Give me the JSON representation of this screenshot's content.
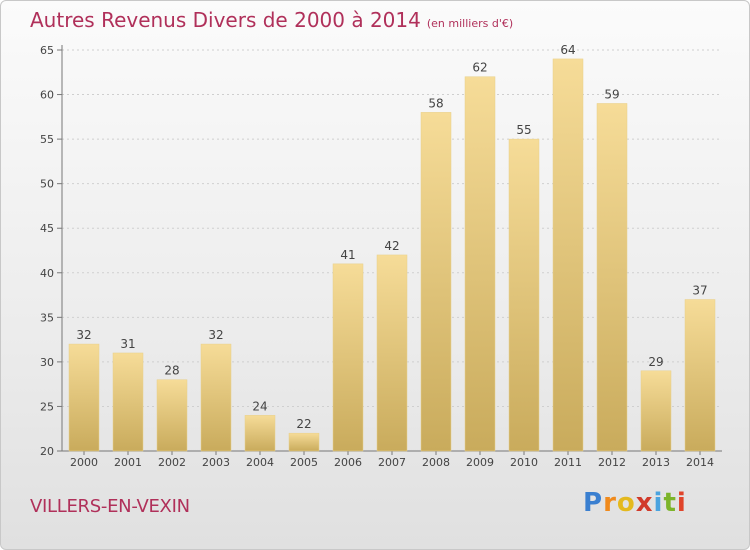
{
  "header": {
    "title": "Autres Revenus Divers de 2000 à 2014",
    "subtitle": "(en milliers d'€)"
  },
  "footer": {
    "town": "VILLERS-EN-VEXIN",
    "logo": [
      "P",
      "r",
      "o",
      "x",
      "i",
      "t",
      "i"
    ]
  },
  "colors": {
    "bar_light": "#f6dc98",
    "bar_dark": "#c9ab5c",
    "title": "#b0305a",
    "grid": "#cccccc"
  },
  "chart_data": {
    "type": "bar",
    "title": "Autres Revenus Divers de 2000 à 2014",
    "subtitle": "(en milliers d'€)",
    "categories": [
      "2000",
      "2001",
      "2002",
      "2003",
      "2004",
      "2005",
      "2006",
      "2007",
      "2008",
      "2009",
      "2010",
      "2011",
      "2012",
      "2013",
      "2014"
    ],
    "values": [
      32,
      31,
      28,
      32,
      24,
      22,
      41,
      42,
      58,
      62,
      55,
      64,
      59,
      29,
      37
    ],
    "ylim": [
      20,
      65
    ],
    "yticks": [
      20,
      25,
      30,
      35,
      40,
      45,
      50,
      55,
      60,
      65
    ],
    "grid": true,
    "data_labels": true
  }
}
